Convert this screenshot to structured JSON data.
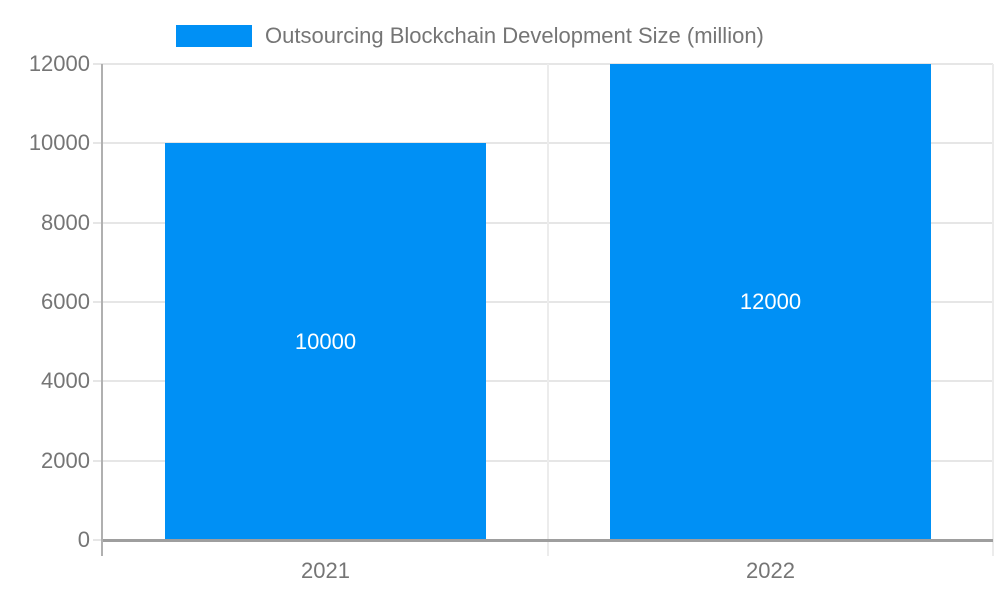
{
  "legend": {
    "label": "Outsourcing Blockchain Development Size (million)",
    "position": "top-center"
  },
  "chart_data": {
    "type": "bar",
    "title": "",
    "categories": [
      "2021",
      "2022"
    ],
    "series": [
      {
        "name": "Outsourcing Blockchain Development Size (million)",
        "values": [
          10000,
          12000
        ]
      }
    ],
    "bar_value_labels": [
      "10000",
      "12000"
    ],
    "xlabel": "",
    "ylabel": "",
    "ylim": [
      0,
      12000
    ],
    "yticks": [
      0,
      2000,
      4000,
      6000,
      8000,
      10000,
      12000
    ],
    "grid": true,
    "legend_position": "top",
    "colors": {
      "bar": "#0090F5",
      "gridline": "#e6e6e6",
      "boundary_line": "#ececec",
      "y_axis_line": "#b0b0b0",
      "baseline": "#9e9e9e",
      "axis_text": "#757575",
      "bar_label_text": "#ffffff"
    }
  }
}
